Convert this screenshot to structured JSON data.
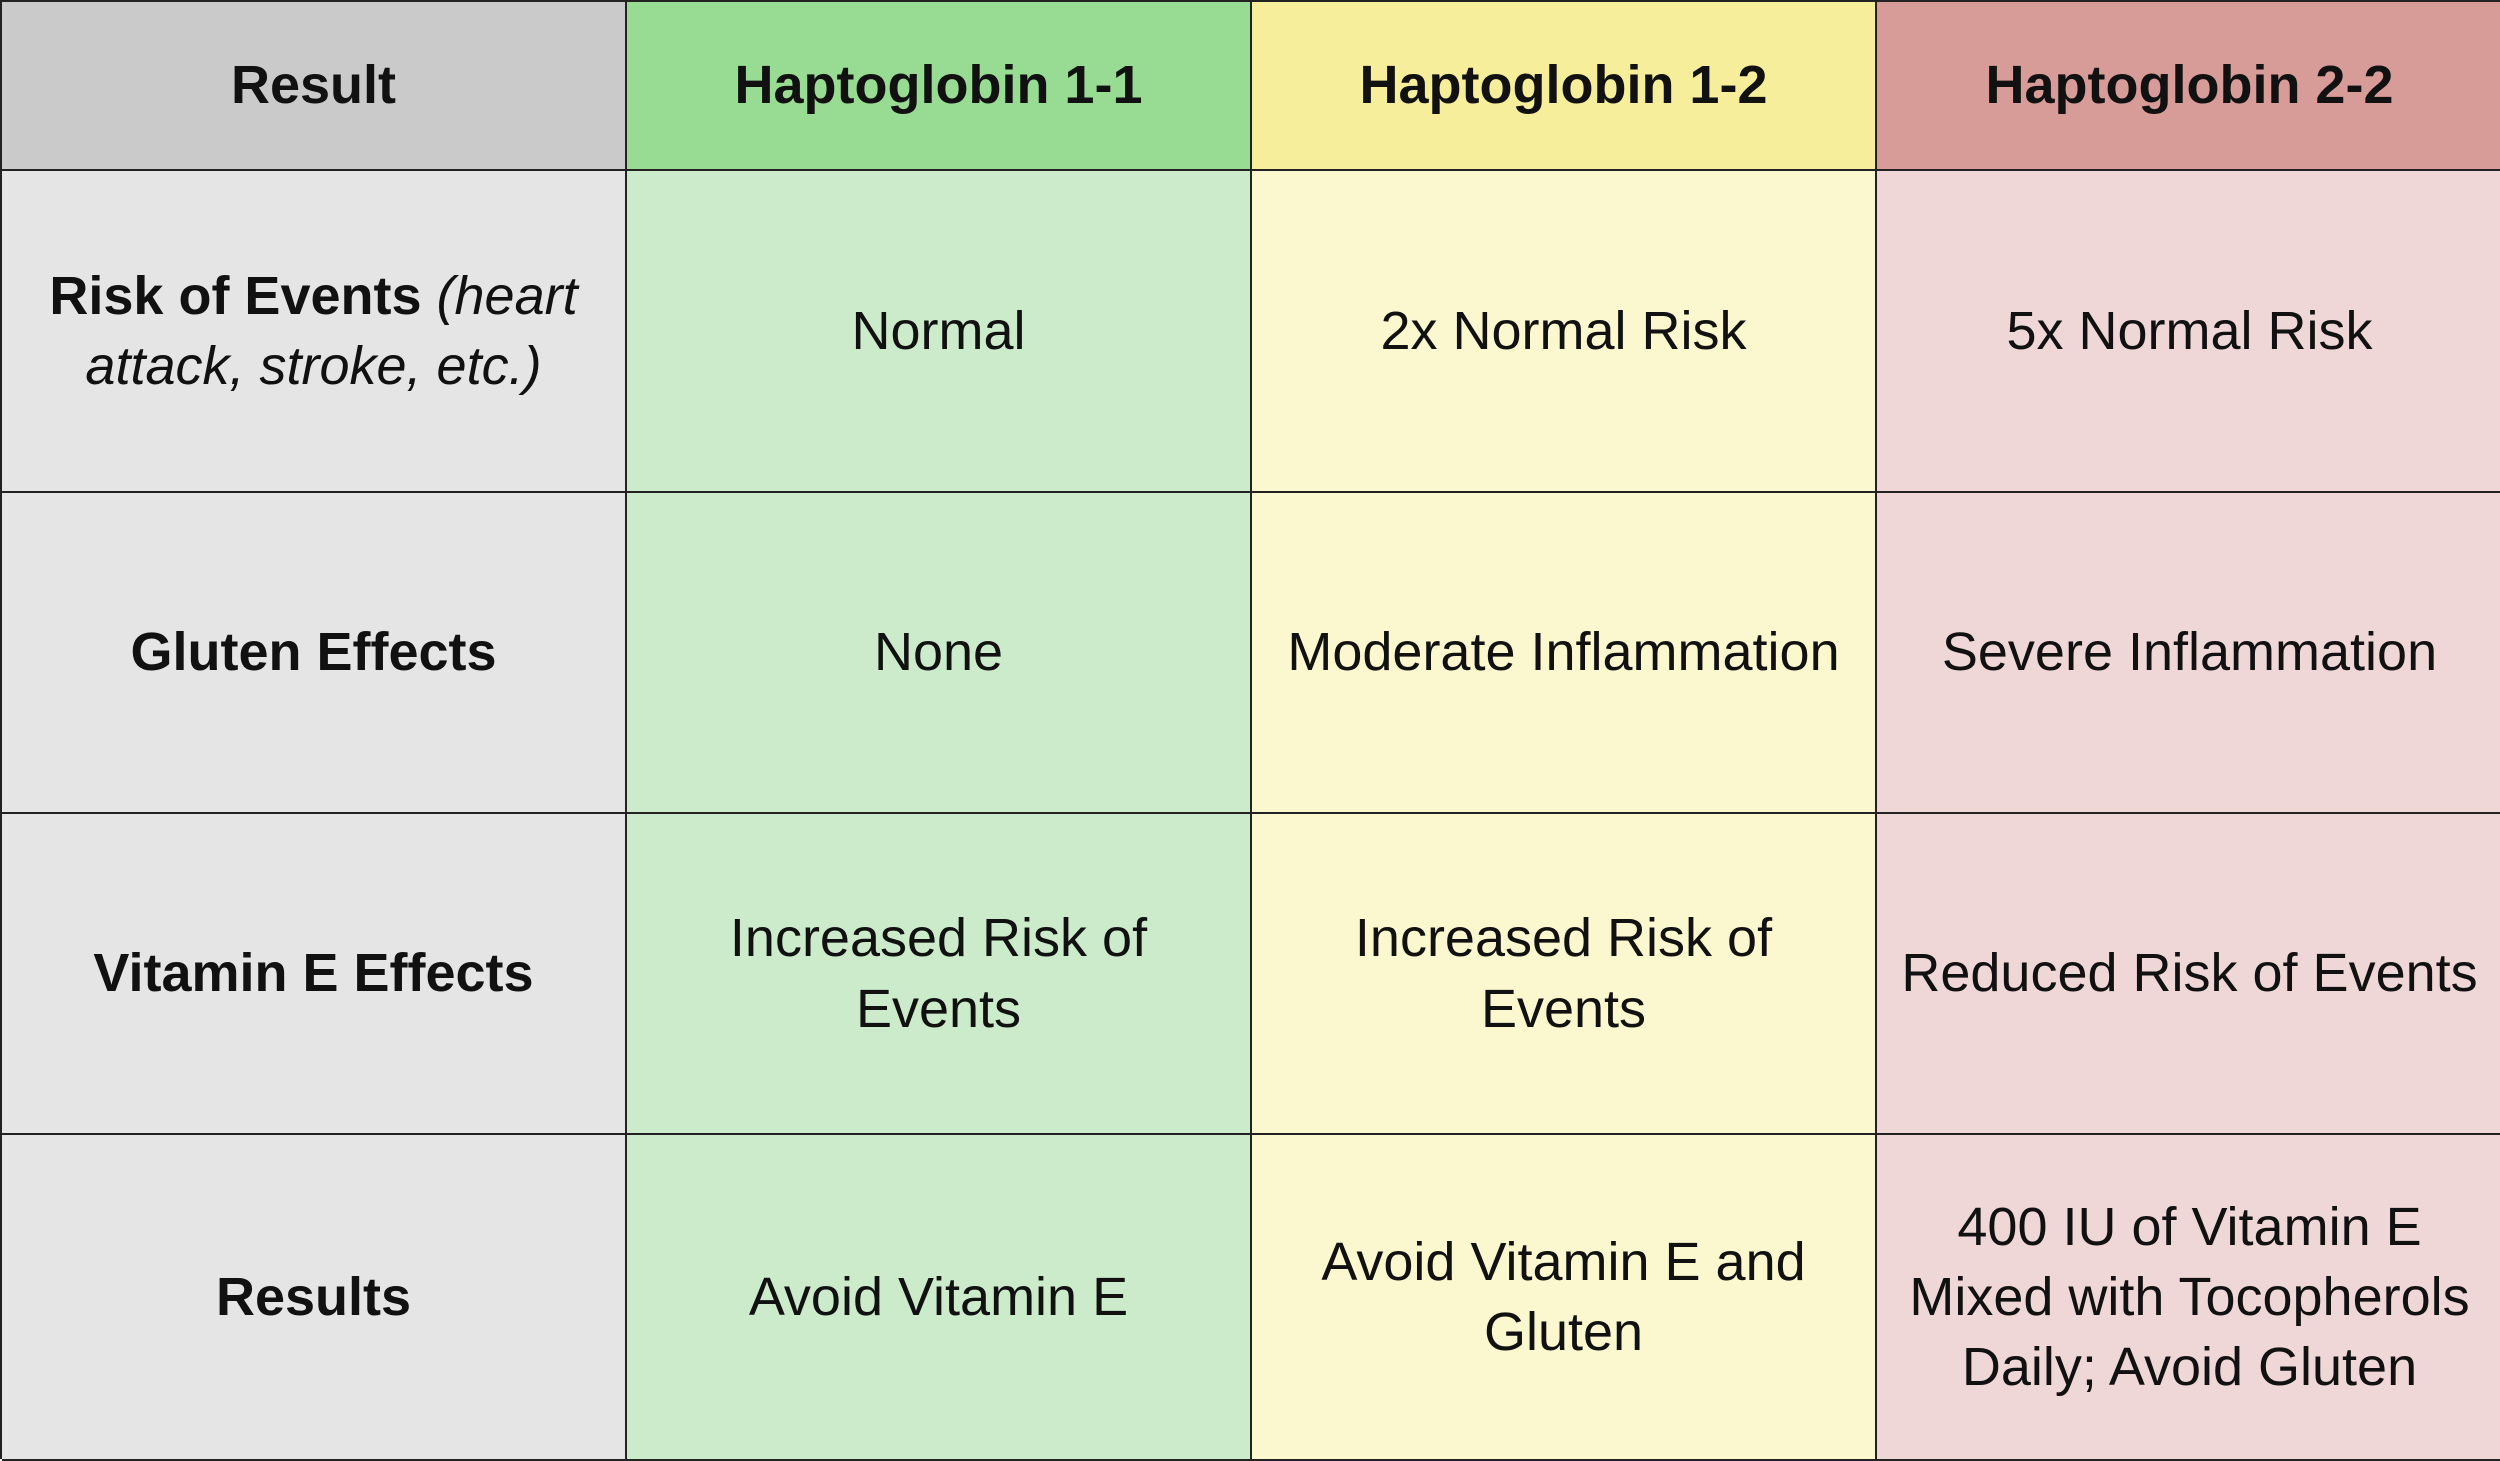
{
  "table": {
    "header": [
      "Result",
      "Haptoglobin 1-1",
      "Haptoglobin 1-2",
      "Haptoglobin 2-2"
    ],
    "rows": [
      {
        "label": "Risk of Events",
        "note": "(heart attack, stroke, etc.)",
        "cells": [
          "Normal",
          "2x Normal Risk",
          "5x Normal Risk"
        ]
      },
      {
        "label": "Gluten Effects",
        "cells": [
          "None",
          "Moderate Inflammation",
          "Severe Inflammation"
        ]
      },
      {
        "label": "Vitamin E Effects",
        "cells": [
          "Increased Risk of Events",
          "Increased Risk of Events",
          "Reduced Risk of Events"
        ]
      },
      {
        "label": "Results",
        "cells": [
          "Avoid Vitamin E",
          "Avoid Vitamin E and Gluten",
          "400 IU of Vitamin E Mixed with Tocopherols Daily; Avoid Gluten"
        ]
      }
    ]
  }
}
